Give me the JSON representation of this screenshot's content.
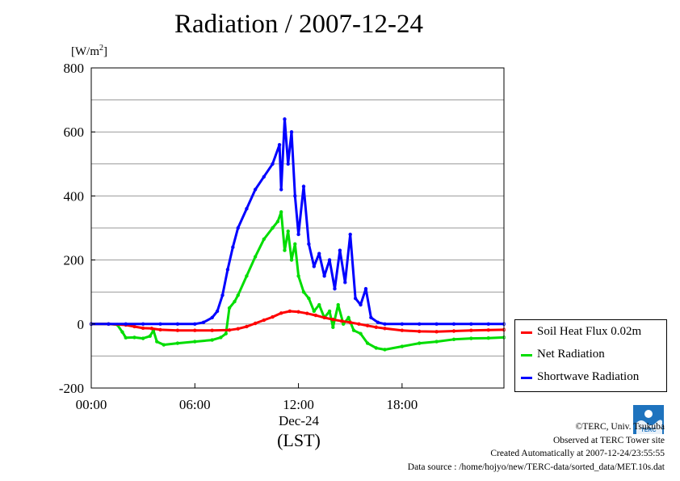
{
  "chart_data": {
    "type": "line",
    "title": "Radiation / 2007-12-24",
    "ylabel_prefix": "[W/m",
    "ylabel_sup": "2",
    "ylabel_suffix": "]",
    "x_ticks": [
      "00:00",
      "06:00",
      "12:00",
      "18:00"
    ],
    "x_tick_hours": [
      0,
      6,
      12,
      18
    ],
    "xlabel_date": "Dec-24",
    "xlabel": "(LST)",
    "y_ticks": [
      "800",
      "600",
      "400",
      "200",
      "0",
      "-200"
    ],
    "ylim": [
      -200,
      800
    ],
    "xlim_hours": [
      0,
      23.9
    ],
    "grid": true,
    "legend_position": "right",
    "series": [
      {
        "name": "Soil Heat Flux 0.02m",
        "color": "#ff0000",
        "x": [
          0,
          1,
          2,
          2.5,
          3,
          3.5,
          4,
          5,
          6,
          7,
          8,
          8.5,
          9,
          9.5,
          10,
          10.5,
          11,
          11.5,
          12,
          12.5,
          13,
          13.5,
          14,
          14.5,
          15,
          15.5,
          16,
          16.5,
          17,
          18,
          19,
          20,
          21,
          22,
          23,
          23.9
        ],
        "y": [
          0,
          0,
          -3,
          -8,
          -13,
          -14,
          -18,
          -20,
          -20,
          -20,
          -19,
          -15,
          -8,
          2,
          12,
          22,
          34,
          40,
          38,
          33,
          27,
          20,
          14,
          9,
          5,
          0,
          -5,
          -10,
          -14,
          -20,
          -23,
          -24,
          -22,
          -20,
          -19,
          -18
        ]
      },
      {
        "name": "Net Radiation",
        "color": "#00dd00",
        "x": [
          0,
          1,
          1.5,
          1.8,
          2.0,
          2.5,
          3.0,
          3.4,
          3.6,
          3.8,
          4.2,
          5,
          6,
          7,
          7.5,
          7.8,
          8.0,
          8.3,
          8.5,
          9,
          9.5,
          10,
          10.5,
          10.8,
          11.0,
          11.2,
          11.4,
          11.6,
          11.8,
          12.0,
          12.3,
          12.6,
          12.9,
          13.2,
          13.5,
          13.8,
          14.0,
          14.3,
          14.6,
          14.9,
          15.2,
          15.6,
          16.0,
          16.5,
          17,
          18,
          19,
          20,
          21,
          22,
          23,
          23.9
        ],
        "y": [
          0,
          0,
          -2,
          -25,
          -43,
          -42,
          -45,
          -38,
          -20,
          -55,
          -65,
          -60,
          -55,
          -50,
          -42,
          -30,
          50,
          70,
          90,
          150,
          210,
          265,
          300,
          320,
          350,
          230,
          290,
          200,
          250,
          150,
          100,
          80,
          40,
          60,
          20,
          40,
          -10,
          60,
          0,
          20,
          -20,
          -30,
          -60,
          -75,
          -80,
          -70,
          -60,
          -55,
          -48,
          -45,
          -44,
          -42
        ]
      },
      {
        "name": "Shortwave Radiation",
        "color": "#0000ff",
        "x": [
          0,
          1,
          2,
          3,
          4,
          5,
          6,
          6.5,
          7.0,
          7.3,
          7.6,
          7.9,
          8.2,
          8.5,
          9.0,
          9.5,
          10.0,
          10.5,
          10.9,
          11.0,
          11.2,
          11.4,
          11.6,
          11.8,
          12.0,
          12.3,
          12.6,
          12.9,
          13.2,
          13.5,
          13.8,
          14.1,
          14.4,
          14.7,
          15.0,
          15.3,
          15.6,
          15.9,
          16.2,
          16.6,
          17,
          18,
          19,
          20,
          21,
          22,
          23,
          23.9
        ],
        "y": [
          0,
          0,
          0,
          0,
          0,
          0,
          0,
          5,
          20,
          40,
          90,
          170,
          240,
          300,
          360,
          420,
          460,
          500,
          560,
          420,
          640,
          500,
          600,
          400,
          280,
          430,
          250,
          180,
          220,
          150,
          200,
          110,
          230,
          130,
          280,
          80,
          60,
          110,
          20,
          5,
          0,
          0,
          0,
          0,
          0,
          0,
          0,
          0
        ]
      }
    ]
  },
  "credits": {
    "line1": "©TERC, Univ. Tsukuba",
    "line2": "Observed at TERC Tower site",
    "line3": "Created Automatically at 2007-12-24/23:55:55",
    "line4": "Data source : /home/hojyo/new/TERC-data/sorted_data/MET.10s.dat"
  },
  "logo": {
    "text": "TERC",
    "color": "#1e73be"
  }
}
